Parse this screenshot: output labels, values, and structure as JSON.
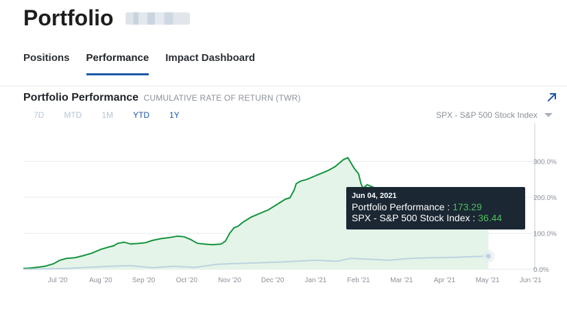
{
  "header": {
    "title": "Portfolio"
  },
  "tabs": [
    {
      "label": "Positions",
      "active": false
    },
    {
      "label": "Performance",
      "active": true
    },
    {
      "label": "Impact Dashboard",
      "active": false
    }
  ],
  "panel": {
    "title": "Portfolio Performance",
    "subtitle": "CUMULATIVE RATE OF RETURN (TWR)",
    "expand_icon": "arrow-up-right-icon",
    "ranges": [
      {
        "label": "7D",
        "enabled": false
      },
      {
        "label": "MTD",
        "enabled": false
      },
      {
        "label": "1M",
        "enabled": false
      },
      {
        "label": "YTD",
        "enabled": true
      },
      {
        "label": "1Y",
        "enabled": true
      }
    ],
    "benchmark": {
      "selected": "SPX - S&P 500 Stock Index"
    }
  },
  "colors": {
    "portfolio": "#12923c",
    "benchmark": "#bcd3e0",
    "accent": "#1a56a8",
    "tooltip_bg": "#1b2733"
  },
  "tooltip": {
    "date": "Jun 04, 2021",
    "portfolio_label": "Portfolio Performance : ",
    "portfolio_value": "173.29",
    "benchmark_label": "SPX - S&P 500 Stock Index : ",
    "benchmark_value": "36.44"
  },
  "chart_data": {
    "type": "area",
    "x_ticks": [
      "Jul '20",
      "Aug '20",
      "Sep '20",
      "Oct '20",
      "Nov '20",
      "Dec '20",
      "Jan '21",
      "Feb '21",
      "Mar '21",
      "Apr '21",
      "May '21",
      "Jun '21"
    ],
    "y_ticks": [
      {
        "value": 0,
        "label": "0.0%"
      },
      {
        "value": 100,
        "label": "100.0%"
      },
      {
        "value": 200,
        "label": "200.0%"
      },
      {
        "value": 300,
        "label": "300.0%"
      }
    ],
    "ylim": [
      0,
      390
    ],
    "xlim": [
      0,
      11.3
    ],
    "grid": true,
    "series": [
      {
        "name": "Portfolio Performance",
        "points": [
          [
            0,
            2
          ],
          [
            0.15,
            3
          ],
          [
            0.3,
            5
          ],
          [
            0.5,
            8
          ],
          [
            0.7,
            15
          ],
          [
            0.85,
            25
          ],
          [
            1.0,
            30
          ],
          [
            1.2,
            32
          ],
          [
            1.4,
            38
          ],
          [
            1.6,
            45
          ],
          [
            1.8,
            55
          ],
          [
            2.0,
            62
          ],
          [
            2.1,
            65
          ],
          [
            2.2,
            72
          ],
          [
            2.35,
            75
          ],
          [
            2.5,
            70
          ],
          [
            2.7,
            72
          ],
          [
            2.85,
            74
          ],
          [
            3.0,
            80
          ],
          [
            3.2,
            85
          ],
          [
            3.4,
            88
          ],
          [
            3.6,
            92
          ],
          [
            3.75,
            90
          ],
          [
            3.9,
            82
          ],
          [
            4.05,
            72
          ],
          [
            4.2,
            70
          ],
          [
            4.4,
            68
          ],
          [
            4.6,
            70
          ],
          [
            4.7,
            78
          ],
          [
            4.8,
            100
          ],
          [
            4.9,
            115
          ],
          [
            5.0,
            120
          ],
          [
            5.1,
            130
          ],
          [
            5.3,
            145
          ],
          [
            5.5,
            155
          ],
          [
            5.7,
            165
          ],
          [
            5.9,
            180
          ],
          [
            6.1,
            195
          ],
          [
            6.2,
            198
          ],
          [
            6.3,
            220
          ],
          [
            6.35,
            238
          ],
          [
            6.45,
            245
          ],
          [
            6.6,
            250
          ],
          [
            6.8,
            260
          ],
          [
            6.9,
            265
          ],
          [
            7.0,
            270
          ],
          [
            7.1,
            275
          ],
          [
            7.25,
            285
          ],
          [
            7.35,
            295
          ],
          [
            7.45,
            305
          ],
          [
            7.55,
            310
          ],
          [
            7.6,
            300
          ],
          [
            7.7,
            280
          ],
          [
            7.8,
            265
          ],
          [
            7.85,
            240
          ],
          [
            7.9,
            225
          ],
          [
            8.0,
            235
          ],
          [
            8.1,
            230
          ],
          [
            8.2,
            225
          ],
          [
            8.4,
            215
          ],
          [
            8.6,
            210
          ],
          [
            8.8,
            205
          ],
          [
            9.0,
            200
          ],
          [
            9.3,
            195
          ],
          [
            9.6,
            190
          ],
          [
            9.9,
            185
          ],
          [
            10.2,
            180
          ],
          [
            10.5,
            176
          ],
          [
            10.7,
            174
          ],
          [
            10.82,
            173.29
          ]
        ]
      },
      {
        "name": "SPX - S&P 500 Stock Index",
        "points": [
          [
            0,
            0
          ],
          [
            1,
            2
          ],
          [
            2,
            8
          ],
          [
            2.5,
            10
          ],
          [
            3,
            4
          ],
          [
            3.5,
            8
          ],
          [
            4,
            5
          ],
          [
            4.5,
            14
          ],
          [
            5,
            16
          ],
          [
            6,
            20
          ],
          [
            6.8,
            25
          ],
          [
            7.3,
            22
          ],
          [
            7.6,
            30
          ],
          [
            8,
            28
          ],
          [
            8.5,
            25
          ],
          [
            9,
            30
          ],
          [
            9.5,
            32
          ],
          [
            10,
            33
          ],
          [
            10.5,
            35
          ],
          [
            10.82,
            36.44
          ]
        ]
      }
    ]
  }
}
